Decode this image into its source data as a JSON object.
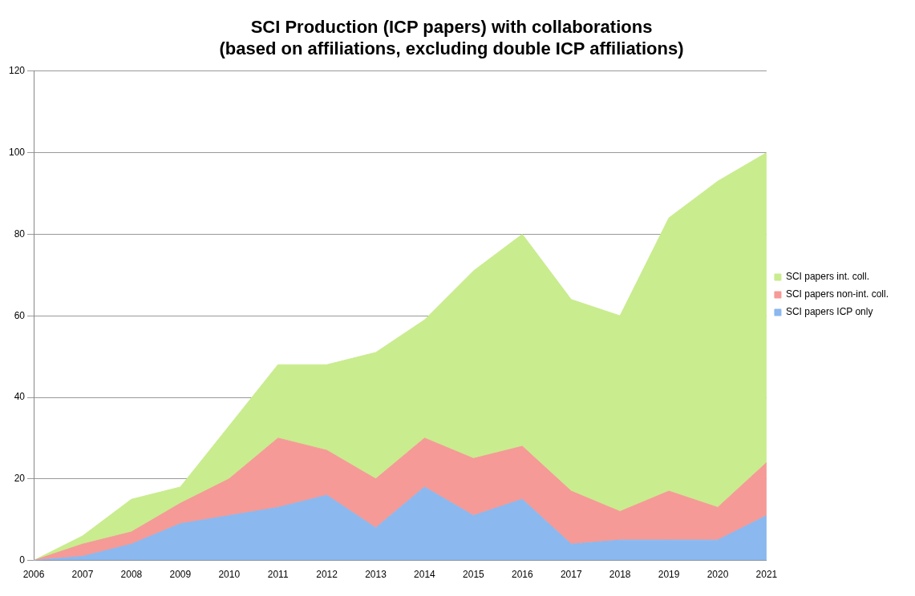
{
  "chart_data": {
    "type": "area",
    "title": "SCI Production (ICP papers) with collaborations\n(based on affiliations, excluding double ICP affiliations)",
    "categories": [
      "2006",
      "2007",
      "2008",
      "2009",
      "2010",
      "2011",
      "2012",
      "2013",
      "2014",
      "2015",
      "2016",
      "2017",
      "2018",
      "2019",
      "2020",
      "2021"
    ],
    "stacked": true,
    "series": [
      {
        "name": "SCI papers ICP only",
        "color": "#8ab8ef",
        "values": [
          0,
          1,
          4,
          9,
          11,
          13,
          16,
          8,
          18,
          11,
          15,
          4,
          5,
          5,
          5,
          11
        ]
      },
      {
        "name": "SCI papers non-int. coll.",
        "color": "#f59a96",
        "values": [
          0,
          3,
          3,
          5,
          9,
          17,
          11,
          12,
          12,
          14,
          13,
          13,
          7,
          12,
          8,
          13
        ]
      },
      {
        "name": "SCI papers int. coll.",
        "color": "#c9ec8e",
        "values": [
          0,
          2,
          8,
          4,
          13,
          18,
          21,
          31,
          29,
          46,
          52,
          47,
          48,
          67,
          80,
          76
        ]
      }
    ],
    "ylim": [
      0,
      120
    ],
    "yticks": [
      0,
      20,
      40,
      60,
      80,
      100,
      120
    ],
    "grid": "y",
    "legend": "right",
    "marker": "none"
  }
}
